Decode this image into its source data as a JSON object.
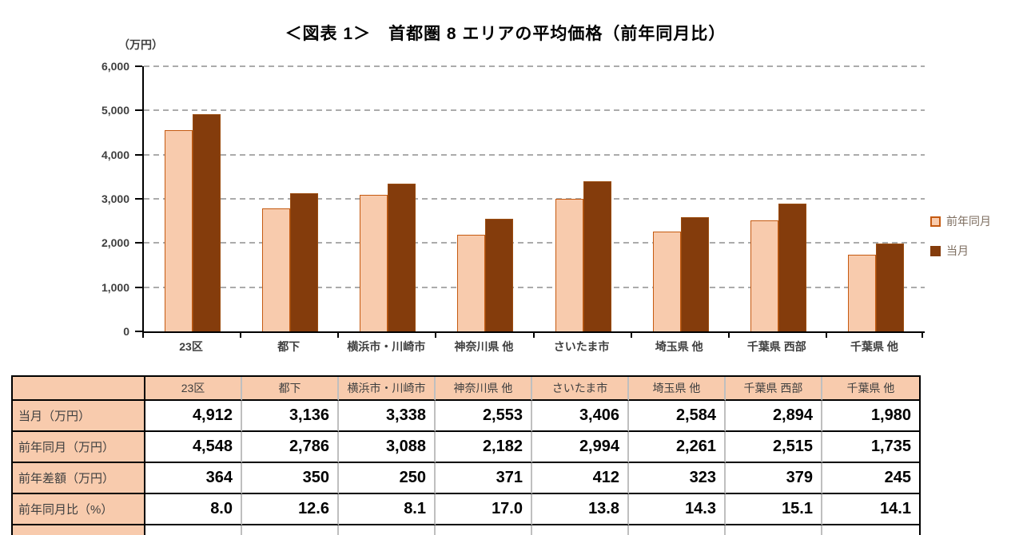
{
  "title": "＜図表 1＞　首都圏 8 エリアの平均価格（前年同月比）",
  "chart_data": {
    "type": "bar",
    "title": "＜図表 1＞　首都圏 8 エリアの平均価格（前年同月比）",
    "unit_label": "（万円）",
    "categories": [
      "23区",
      "都下",
      "横浜市・川崎市",
      "神奈川県 他",
      "さいたま市",
      "埼玉県 他",
      "千葉県 西部",
      "千葉県 他"
    ],
    "series": [
      {
        "name": "前年同月",
        "color": "#F8CBAD",
        "border_color": "#C55A11",
        "values": [
          4548,
          2786,
          3088,
          2182,
          2994,
          2261,
          2515,
          1735
        ]
      },
      {
        "name": "当月",
        "color": "#843C0C",
        "border_color": "#9C4D10",
        "values": [
          4912,
          3136,
          3338,
          2553,
          3406,
          2584,
          2894,
          1980
        ]
      }
    ],
    "ylim": [
      0,
      6000
    ],
    "ytick_interval": 1000,
    "ytick_labels": [
      "6,000",
      "5,000",
      "4,000",
      "3,000",
      "2,000",
      "1,000",
      "0"
    ],
    "grid": "horizontal-dashed",
    "legend_position": "right"
  },
  "table": {
    "header_row": [
      "",
      "23区",
      "都下",
      "横浜市・川崎市",
      "神奈川県 他",
      "さいたま市",
      "埼玉県 他",
      "千葉県 西部",
      "千葉県 他"
    ],
    "rows": [
      {
        "label": "当月（万円）",
        "values": [
          "4,912",
          "3,136",
          "3,338",
          "2,553",
          "3,406",
          "2,584",
          "2,894",
          "1,980"
        ]
      },
      {
        "label": "前年同月（万円）",
        "values": [
          "4,548",
          "2,786",
          "3,088",
          "2,182",
          "2,994",
          "2,261",
          "2,515",
          "1,735"
        ]
      },
      {
        "label": "前年差額（万円）",
        "values": [
          "364",
          "350",
          "250",
          "371",
          "412",
          "323",
          "379",
          "245"
        ]
      },
      {
        "label": "前年同月比（%）",
        "values": [
          "8.0",
          "12.6",
          "8.1",
          "17.0",
          "13.8",
          "14.3",
          "15.1",
          "14.1"
        ]
      }
    ]
  },
  "colors": {
    "bar_prev_fill": "#F8CBAD",
    "bar_prev_border": "#C55A11",
    "bar_current_fill": "#843C0C",
    "table_header_bg": "#F8CBAD",
    "gridline": "#ABABAB",
    "axis": "#000000",
    "tick_label_text": "#3F3F3F",
    "legend_text": "#7E6E60",
    "table_gray_divider": "#BFBFBF"
  }
}
